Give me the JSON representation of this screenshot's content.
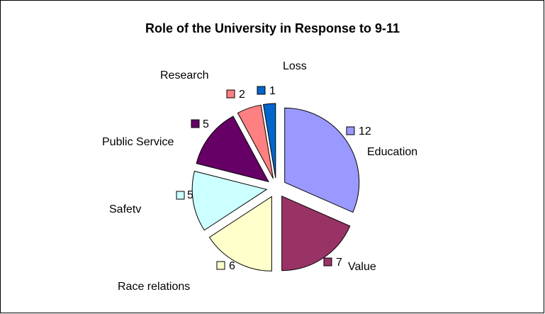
{
  "chart_data": {
    "type": "pie",
    "title": "Role of the University in Response to 9-11",
    "exploded": true,
    "start_angle_deg": 0,
    "direction": "clockwise",
    "slices": [
      {
        "label": "Education",
        "value": 12,
        "color": "#9999ff"
      },
      {
        "label": "Value",
        "value": 7,
        "color": "#993366"
      },
      {
        "label": "Race relations",
        "value": 6,
        "color": "#ffffcc"
      },
      {
        "label": "Safetv",
        "value": 5,
        "color": "#ccffff"
      },
      {
        "label": "Public Service",
        "value": 5,
        "color": "#660066"
      },
      {
        "label": "Research",
        "value": 2,
        "color": "#ff8080"
      },
      {
        "label": "Loss",
        "value": 1,
        "color": "#0066cc"
      }
    ],
    "legend": "none"
  }
}
